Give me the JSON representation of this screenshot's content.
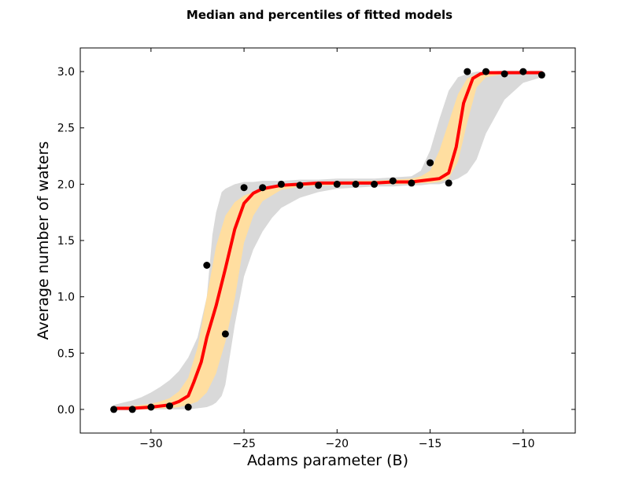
{
  "chart_data": {
    "type": "line",
    "title": "Median and percentiles of fitted models",
    "xlabel": "Adams parameter (B)",
    "ylabel": "Average number of waters",
    "xlim": [
      -33.8,
      -7.2
    ],
    "ylim": [
      -0.21,
      3.21
    ],
    "xticks": [
      -30,
      -25,
      -20,
      -15,
      -10
    ],
    "xtick_labels": [
      "−30",
      "−25",
      "−20",
      "−15",
      "−10"
    ],
    "yticks": [
      0.0,
      0.5,
      1.0,
      1.5,
      2.0,
      2.5,
      3.0
    ],
    "ytick_labels": [
      "0.0",
      "0.5",
      "1.0",
      "1.5",
      "2.0",
      "2.5",
      "3.0"
    ],
    "grid": false,
    "colors": {
      "outer_band": "#d9d9d9",
      "inner_band": "#ffdea0",
      "median": "#ff0000",
      "points": "#000000"
    },
    "outer_band": {
      "x": [
        -32,
        -31.5,
        -31,
        -30.5,
        -30,
        -29.5,
        -29,
        -28.5,
        -28,
        -27.5,
        -27,
        -26.7,
        -26.5,
        -26.2,
        -26,
        -25.5,
        -25,
        -24.5,
        -24,
        -23.5,
        -23,
        -22,
        -21,
        -20,
        -19,
        -18,
        -17,
        -16,
        -15.5,
        -15,
        -14.5,
        -14,
        -13.5,
        -13,
        -12.5,
        -12,
        -11,
        -10,
        -9
      ],
      "upper": [
        0.04,
        0.06,
        0.08,
        0.11,
        0.15,
        0.2,
        0.26,
        0.34,
        0.46,
        0.64,
        1.0,
        1.55,
        1.75,
        1.93,
        1.96,
        2.0,
        2.02,
        2.02,
        2.03,
        2.03,
        2.03,
        2.04,
        2.04,
        2.05,
        2.05,
        2.05,
        2.06,
        2.07,
        2.12,
        2.3,
        2.58,
        2.83,
        2.95,
        2.98,
        3.0,
        3.0,
        3.01,
        3.01,
        3.01
      ],
      "lower": [
        -0.01,
        -0.01,
        -0.01,
        0.0,
        0.0,
        0.0,
        0.0,
        0.0,
        0.0,
        0.01,
        0.02,
        0.04,
        0.06,
        0.12,
        0.22,
        0.75,
        1.18,
        1.42,
        1.58,
        1.7,
        1.79,
        1.88,
        1.93,
        1.96,
        1.97,
        1.98,
        1.98,
        1.99,
        1.99,
        2.0,
        2.0,
        2.02,
        2.05,
        2.1,
        2.22,
        2.45,
        2.75,
        2.9,
        2.95
      ]
    },
    "inner_band": {
      "x": [
        -32,
        -31,
        -30,
        -29.5,
        -29,
        -28.5,
        -28,
        -27.5,
        -27,
        -26.5,
        -26,
        -25.5,
        -25,
        -24.5,
        -24,
        -23,
        -22,
        -21,
        -20,
        -19,
        -18,
        -17,
        -16,
        -15.5,
        -15,
        -14.5,
        -14,
        -13.5,
        -13,
        -12.5,
        -12,
        -11,
        -10,
        -9
      ],
      "upper": [
        0.02,
        0.03,
        0.05,
        0.07,
        0.1,
        0.16,
        0.28,
        0.55,
        1.0,
        1.45,
        1.72,
        1.84,
        1.9,
        1.93,
        1.97,
        2.0,
        2.01,
        2.02,
        2.02,
        2.03,
        2.03,
        2.04,
        2.05,
        2.07,
        2.12,
        2.3,
        2.55,
        2.8,
        2.94,
        2.98,
        2.99,
        3.0,
        3.0,
        3.0
      ],
      "lower": [
        0.0,
        0.0,
        0.0,
        0.01,
        0.01,
        0.02,
        0.04,
        0.07,
        0.15,
        0.32,
        0.6,
        0.98,
        1.48,
        1.72,
        1.85,
        1.95,
        1.98,
        1.99,
        1.99,
        2.0,
        2.0,
        2.0,
        2.0,
        2.01,
        2.01,
        2.02,
        2.05,
        2.2,
        2.55,
        2.86,
        2.95,
        2.98,
        2.99,
        2.99
      ]
    },
    "median": {
      "x": [
        -32,
        -31,
        -30,
        -29,
        -28.5,
        -28,
        -27.7,
        -27.3,
        -27,
        -26.5,
        -26,
        -25.5,
        -25,
        -24.5,
        -24,
        -23,
        -22,
        -21,
        -20,
        -19,
        -18,
        -17,
        -16,
        -15,
        -14.5,
        -14,
        -13.6,
        -13.2,
        -12.7,
        -12.3,
        -12,
        -11,
        -10,
        -9
      ],
      "y": [
        0.01,
        0.01,
        0.02,
        0.04,
        0.07,
        0.12,
        0.24,
        0.42,
        0.64,
        0.92,
        1.25,
        1.6,
        1.83,
        1.92,
        1.96,
        1.99,
        2.0,
        2.01,
        2.01,
        2.01,
        2.01,
        2.02,
        2.02,
        2.04,
        2.05,
        2.1,
        2.33,
        2.72,
        2.94,
        2.98,
        2.99,
        2.99,
        2.99,
        2.99
      ]
    },
    "points": {
      "x": [
        -32,
        -31,
        -30,
        -29,
        -28,
        -27,
        -26,
        -25,
        -24,
        -23,
        -22,
        -21,
        -20,
        -19,
        -18,
        -17,
        -16,
        -15,
        -14,
        -13,
        -12,
        -11,
        -10,
        -9
      ],
      "y": [
        0.0,
        0.0,
        0.02,
        0.03,
        0.02,
        1.28,
        0.67,
        1.97,
        1.97,
        2.0,
        1.99,
        1.99,
        2.0,
        2.0,
        2.0,
        2.03,
        2.01,
        2.19,
        2.01,
        3.0,
        3.0,
        2.98,
        3.0,
        2.97
      ]
    }
  }
}
